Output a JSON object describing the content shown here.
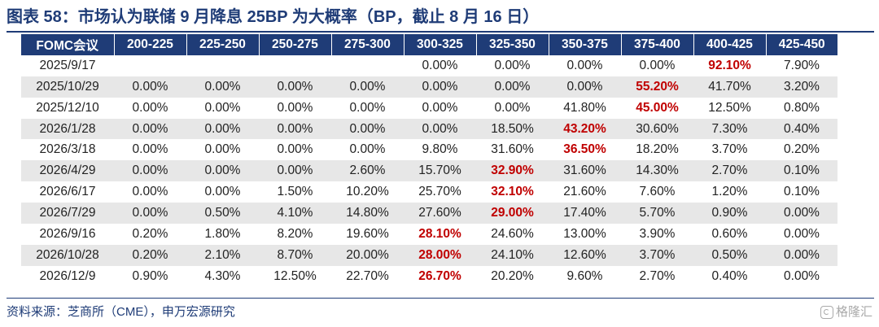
{
  "title": "图表 58：市场认为联储 9 月降息 25BP 为大概率（BP，截止 8 月 16 日）",
  "table": {
    "headers": [
      "FOMC会议",
      "200-225",
      "225-250",
      "250-275",
      "275-300",
      "300-325",
      "325-350",
      "350-375",
      "375-400",
      "400-425",
      "425-450"
    ],
    "rows": [
      {
        "cells": [
          "2025/9/17",
          "",
          "",
          "",
          "",
          "0.00%",
          "0.00%",
          "0.00%",
          "0.00%",
          "92.10%",
          "7.90%"
        ],
        "highlight": 9
      },
      {
        "cells": [
          "2025/10/29",
          "0.00%",
          "0.00%",
          "0.00%",
          "0.00%",
          "0.00%",
          "0.00%",
          "0.00%",
          "55.20%",
          "41.70%",
          "3.20%"
        ],
        "highlight": 8
      },
      {
        "cells": [
          "2025/12/10",
          "0.00%",
          "0.00%",
          "0.00%",
          "0.00%",
          "0.00%",
          "0.00%",
          "41.80%",
          "45.00%",
          "12.50%",
          "0.80%"
        ],
        "highlight": 8
      },
      {
        "cells": [
          "2026/1/28",
          "0.00%",
          "0.00%",
          "0.00%",
          "0.00%",
          "0.00%",
          "18.50%",
          "43.20%",
          "30.60%",
          "7.30%",
          "0.40%"
        ],
        "highlight": 7
      },
      {
        "cells": [
          "2026/3/18",
          "0.00%",
          "0.00%",
          "0.00%",
          "0.00%",
          "9.80%",
          "31.60%",
          "36.50%",
          "18.20%",
          "3.70%",
          "0.20%"
        ],
        "highlight": 7
      },
      {
        "cells": [
          "2026/4/29",
          "0.00%",
          "0.00%",
          "0.00%",
          "2.60%",
          "15.70%",
          "32.90%",
          "31.60%",
          "14.30%",
          "2.70%",
          "0.10%"
        ],
        "highlight": 6
      },
      {
        "cells": [
          "2026/6/17",
          "0.00%",
          "0.00%",
          "1.50%",
          "10.20%",
          "25.70%",
          "32.10%",
          "21.60%",
          "7.60%",
          "1.20%",
          "0.10%"
        ],
        "highlight": 6
      },
      {
        "cells": [
          "2026/7/29",
          "0.00%",
          "0.50%",
          "4.10%",
          "14.80%",
          "27.60%",
          "29.00%",
          "17.40%",
          "5.70%",
          "0.90%",
          "0.00%"
        ],
        "highlight": 6
      },
      {
        "cells": [
          "2026/9/16",
          "0.20%",
          "1.80%",
          "8.20%",
          "19.60%",
          "28.10%",
          "24.60%",
          "13.00%",
          "3.90%",
          "0.60%",
          "0.00%"
        ],
        "highlight": 5
      },
      {
        "cells": [
          "2026/10/28",
          "0.20%",
          "2.10%",
          "8.70%",
          "20.00%",
          "28.00%",
          "24.10%",
          "12.60%",
          "3.70%",
          "0.50%",
          "0.00%"
        ],
        "highlight": 5
      },
      {
        "cells": [
          "2026/12/9",
          "0.90%",
          "4.30%",
          "12.50%",
          "22.70%",
          "26.70%",
          "20.20%",
          "9.60%",
          "2.70%",
          "0.40%",
          "0.00%"
        ],
        "highlight": 5
      }
    ]
  },
  "source": "资料来源：芝商所（CME），申万宏源研究",
  "watermark": "格隆汇",
  "colors": {
    "header_bg": "#1f3c77",
    "highlight": "#c00000",
    "stripe": "#e7e7e7"
  }
}
